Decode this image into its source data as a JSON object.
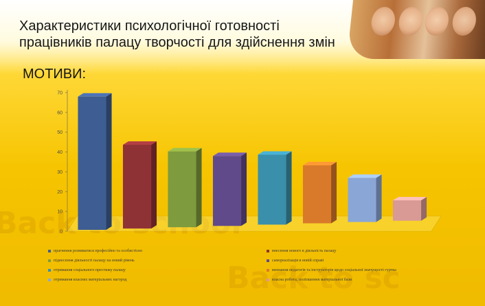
{
  "slide": {
    "title_line1": "Характеристики психологічної готовності",
    "title_line2": "працівників палацу творчості для здійснення змін",
    "section": "МОТИВИ:"
  },
  "chart_data": {
    "type": "bar",
    "title": "",
    "xlabel": "",
    "ylabel": "",
    "ylim": [
      0,
      70
    ],
    "yticks": [
      0,
      10,
      20,
      30,
      40,
      50,
      60,
      70
    ],
    "grid": false,
    "legend_position": "bottom",
    "categories": [
      "прагнення розвиватися професійно та особистісно",
      "внесення нового в діяльність палацу",
      "піднесення діяльності палацу на новий рівень",
      "самореалізація в новій справі",
      "отримання соціального престижу палацу",
      "визнання педагогів та інструкторів щодо соціальної значущості гуртка",
      "отримання власних матеріальних нагород",
      "власна робота, поліпшення матеріальної бази"
    ],
    "values": [
      68,
      43,
      39,
      36,
      36,
      30,
      23,
      11
    ],
    "colors": [
      "#3d5d93",
      "#8f3236",
      "#7e9b3e",
      "#614a8a",
      "#3a8fab",
      "#d97a2a",
      "#8aa6d6",
      "#d99a96"
    ]
  }
}
